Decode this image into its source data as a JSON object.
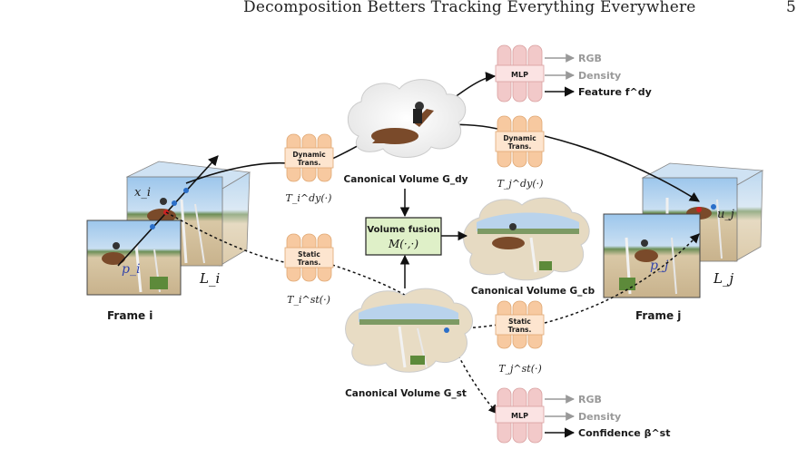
{
  "header": {
    "title": "Decomposition Betters Tracking Everything Everywhere",
    "page_number": "5"
  },
  "frames": {
    "frame_i_label": "Frame i",
    "frame_j_label": "Frame j",
    "layer_i_label": "L_i",
    "layer_j_label": "L_j",
    "point_i_label": "p_i",
    "point_j_label": "p_j",
    "coord_i_label": "x_i",
    "coord_j_label": "u_j"
  },
  "transforms": {
    "dynamic_label_line1": "Dynamic",
    "dynamic_label_line2": "Trans.",
    "static_label_line1": "Static",
    "static_label_line2": "Trans.",
    "dyn_i_caption": "T_i^dy(·)",
    "dyn_j_caption": "T_j^dy(·)",
    "st_i_caption": "T_i^st(·)",
    "st_j_caption": "T_j^st(·)"
  },
  "volumes": {
    "dynamic_caption": "Canonical Volume G_dy",
    "static_caption": "Canonical Volume G_st",
    "combined_caption": "Canonical Volume G_cb"
  },
  "fusion": {
    "title": "Volume fusion",
    "formula": "M(·,·)"
  },
  "mlp_top": {
    "label": "MLP",
    "outputs": [
      "RGB",
      "Density",
      "Feature f^dy"
    ]
  },
  "mlp_bottom": {
    "label": "MLP",
    "outputs": [
      "RGB",
      "Density",
      "Confidence β^st"
    ]
  },
  "colors": {
    "trans_block": "#f7c9a0",
    "mlp_block": "#f2c9c9",
    "fusion_box": "#dff0c8",
    "sky": "#9cc6ec",
    "sand": "#d9c8a6"
  }
}
